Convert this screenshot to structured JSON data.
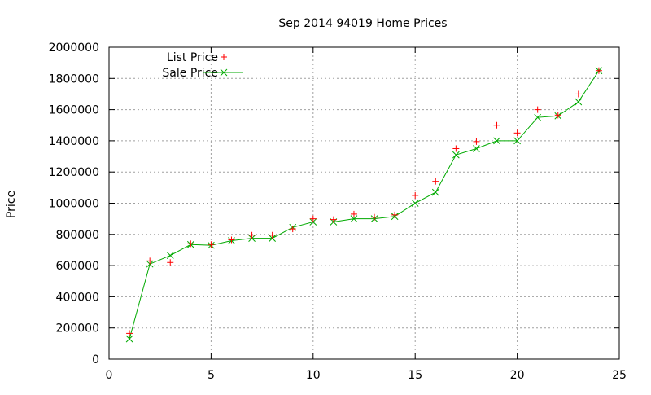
{
  "chart_data": {
    "type": "line",
    "title": "Sep 2014 94019 Home Prices",
    "xlabel": "",
    "ylabel": "Price",
    "xlim": [
      0,
      25
    ],
    "ylim": [
      0,
      2000000
    ],
    "x_ticks": [
      "0",
      "5",
      "10",
      "15",
      "20",
      "25"
    ],
    "y_ticks": [
      "0",
      "200000",
      "400000",
      "600000",
      "800000",
      "1000000",
      "1200000",
      "1400000",
      "1600000",
      "1800000",
      "2000000"
    ],
    "grid": true,
    "legend_position": "top-left",
    "series": [
      {
        "name": "List Price",
        "style": "points",
        "marker": "+",
        "color": "#ff0000",
        "x": [
          1,
          2,
          3,
          4,
          5,
          6,
          7,
          8,
          9,
          10,
          11,
          12,
          13,
          14,
          15,
          16,
          17,
          18,
          19,
          20,
          21,
          22,
          23,
          24
        ],
        "values": [
          165000,
          630000,
          620000,
          740000,
          735000,
          765000,
          795000,
          795000,
          835000,
          900000,
          895000,
          930000,
          910000,
          925000,
          1050000,
          1140000,
          1350000,
          1395000,
          1500000,
          1450000,
          1600000,
          1565000,
          1700000,
          1850000
        ]
      },
      {
        "name": "Sale Price",
        "style": "linespoints",
        "marker": "x",
        "color": "#00aa00",
        "x": [
          1,
          2,
          3,
          4,
          5,
          6,
          7,
          8,
          9,
          10,
          11,
          12,
          13,
          14,
          15,
          16,
          17,
          18,
          19,
          20,
          21,
          22,
          23,
          24
        ],
        "values": [
          130000,
          610000,
          665000,
          735000,
          730000,
          760000,
          775000,
          775000,
          845000,
          880000,
          880000,
          900000,
          900000,
          915000,
          1000000,
          1070000,
          1310000,
          1350000,
          1400000,
          1400000,
          1550000,
          1560000,
          1650000,
          1850000
        ]
      }
    ]
  }
}
